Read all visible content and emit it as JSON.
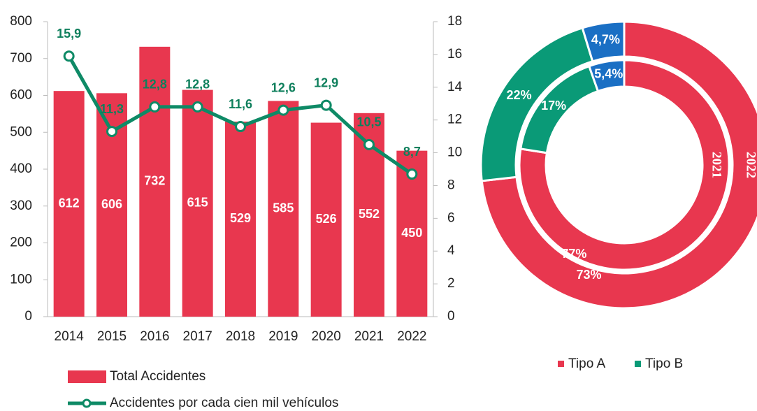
{
  "chart_data": [
    {
      "type": "bar",
      "categories": [
        "2014",
        "2015",
        "2016",
        "2017",
        "2018",
        "2019",
        "2020",
        "2021",
        "2022"
      ],
      "series": [
        {
          "name": "Total Accidentes",
          "color": "#e8374f",
          "values": [
            612,
            606,
            732,
            615,
            529,
            585,
            526,
            552,
            450
          ]
        },
        {
          "name": "Accidentes por cada cien mil vehículos",
          "color": "#0e8a66",
          "axis": "y2",
          "values": [
            15.9,
            11.3,
            12.8,
            12.8,
            11.6,
            12.6,
            12.9,
            10.5,
            8.7
          ],
          "value_labels": [
            "15,9",
            "11,3",
            "12,8",
            "12,8",
            "11,6",
            "12,6",
            "12,9",
            "10,5",
            "8,7"
          ]
        }
      ],
      "ylim": [
        0,
        800
      ],
      "yticks": [
        0,
        100,
        200,
        300,
        400,
        500,
        600,
        700,
        800
      ],
      "y2lim": [
        0,
        18
      ],
      "y2ticks": [
        0,
        2,
        4,
        6,
        8,
        10,
        12,
        14,
        16,
        18
      ],
      "legend": "bottom"
    },
    {
      "type": "donut",
      "categories": [
        "Tipo A",
        "Tipo B",
        null
      ],
      "colors": [
        "#e8374f",
        "#0a9a77",
        "#1a6fc4"
      ],
      "series": [
        {
          "name": "2022",
          "values": [
            73,
            22,
            4.7
          ],
          "value_labels": [
            "73%",
            "22%",
            "4,7%"
          ]
        },
        {
          "name": "2021",
          "values": [
            77,
            17,
            5.4
          ],
          "value_labels": [
            "77%",
            "17%",
            "5,4%"
          ]
        }
      ],
      "legend": "bottom"
    }
  ]
}
